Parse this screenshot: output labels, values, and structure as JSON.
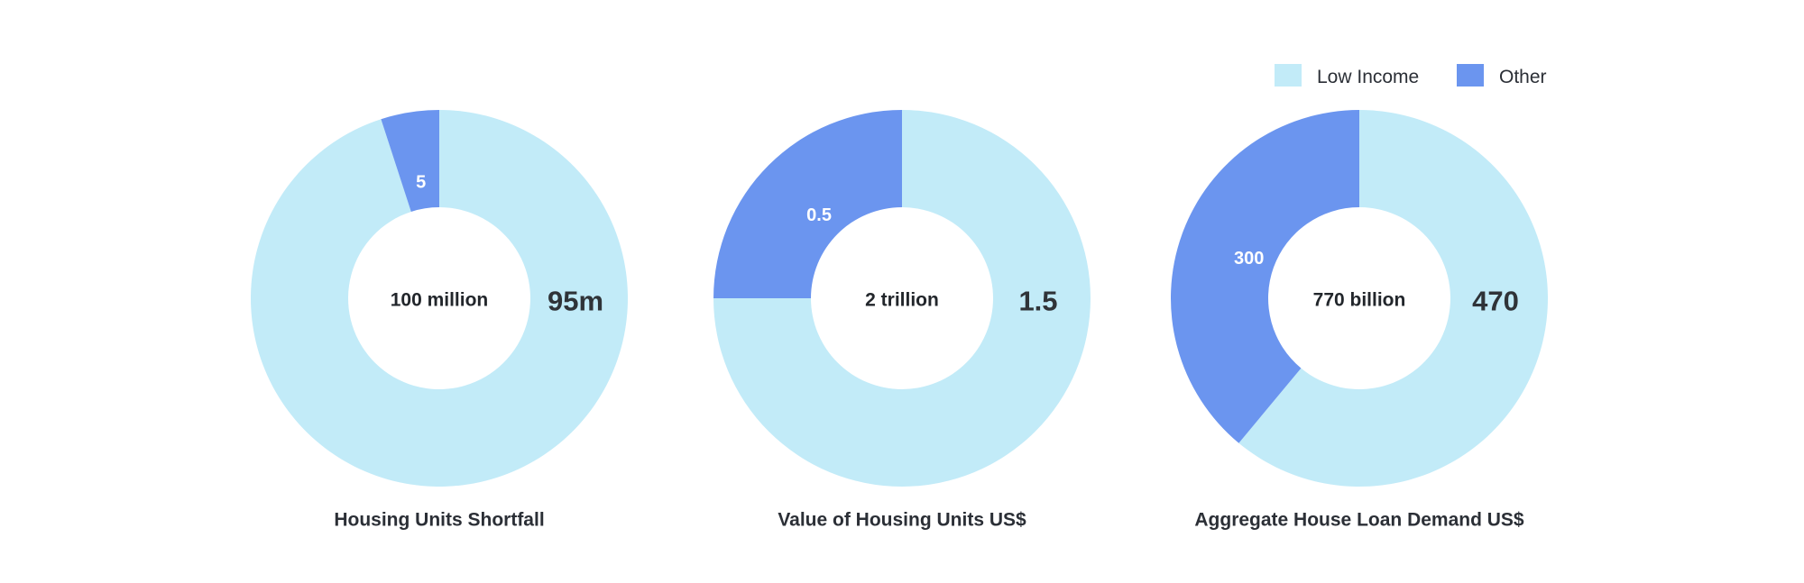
{
  "colors": {
    "low_income": "#c2ebf8",
    "other": "#6b95ef"
  },
  "legend": {
    "position": "top-right",
    "items": [
      {
        "name": "Low Income",
        "color_key": "low_income"
      },
      {
        "name": "Other",
        "color_key": "other"
      }
    ]
  },
  "chart_data": [
    {
      "type": "pie",
      "title": "Housing Units Shortfall",
      "center_label": "100 million",
      "slices": [
        {
          "name": "Low Income",
          "value": 95,
          "label": "95m"
        },
        {
          "name": "Other",
          "value": 5,
          "label": "5"
        }
      ]
    },
    {
      "type": "pie",
      "title": "Value of Housing Units US$",
      "center_label": "2 trillion",
      "slices": [
        {
          "name": "Low Income",
          "value": 1.5,
          "label": "1.5"
        },
        {
          "name": "Other",
          "value": 0.5,
          "label": "0.5"
        }
      ]
    },
    {
      "type": "pie",
      "title": "Aggregate House Loan Demand US$",
      "center_label": "770 billion",
      "slices": [
        {
          "name": "Low Income",
          "value": 470,
          "label": "470"
        },
        {
          "name": "Other",
          "value": 300,
          "label": "300"
        }
      ]
    }
  ]
}
